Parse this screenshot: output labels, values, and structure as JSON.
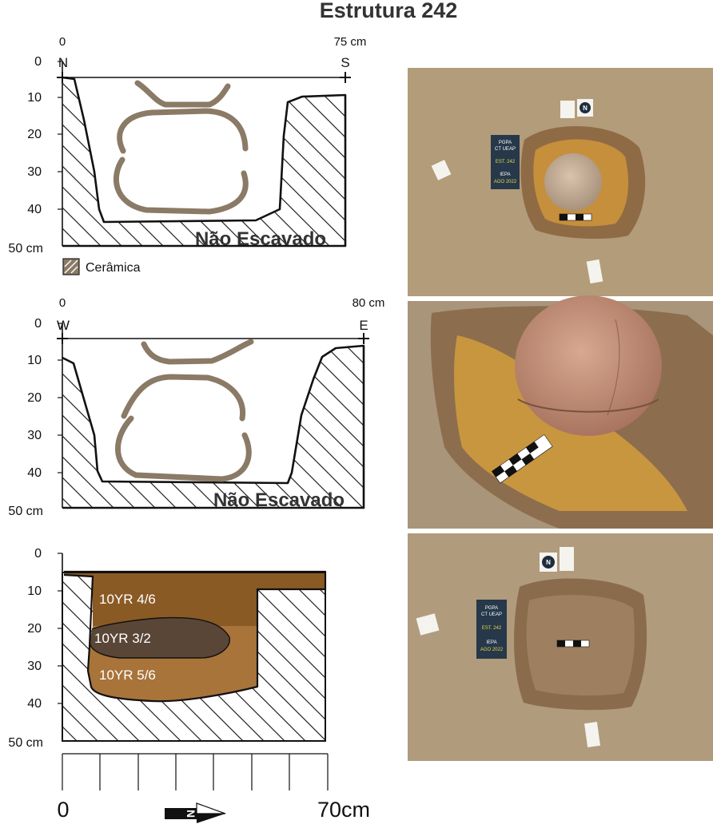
{
  "title": "Estrutura 242",
  "colors": {
    "ceramic": "#8a7a66",
    "soil_10yr_4_6": "#8a5a24",
    "soil_10yr_3_2": "#5a4637",
    "soil_10yr_5_6": "#a8743a",
    "photo_soil": "#b89a78"
  },
  "profile_ns": {
    "x_start": "0",
    "x_end": "75 cm",
    "left_dir": "N",
    "right_dir": "S",
    "y_ticks": [
      "0",
      "10",
      "20",
      "30",
      "40"
    ],
    "y_end": "50 cm",
    "unexcavated": "Não Escavado",
    "legend_label": "Cerâmica"
  },
  "profile_we": {
    "x_start": "0",
    "x_end": "80 cm",
    "left_dir": "W",
    "right_dir": "E",
    "y_ticks": [
      "0",
      "10",
      "20",
      "30",
      "40"
    ],
    "y_end": "50 cm",
    "unexcavated": "Não Escavado"
  },
  "profile_soil": {
    "y_ticks": [
      "0",
      "10",
      "20",
      "30",
      "40"
    ],
    "y_end": "50 cm",
    "layers": [
      "10YR 4/6",
      "10YR 3/2",
      "10YR 5/6"
    ]
  },
  "scale_bar": {
    "start": "0",
    "end": "70cm",
    "north_letter": "N"
  },
  "photos": {
    "photo1": {
      "board_lines": [
        "PGPA",
        "CT UEAP",
        "EST. 242",
        "IEPA",
        "AGO 2022"
      ],
      "north_letter": "N"
    },
    "photo2": {},
    "photo3": {
      "board_lines": [
        "PGPA",
        "CT UEAP",
        "EST. 242",
        "IEPA",
        "AGO 2022"
      ],
      "north_letter": "N"
    }
  }
}
